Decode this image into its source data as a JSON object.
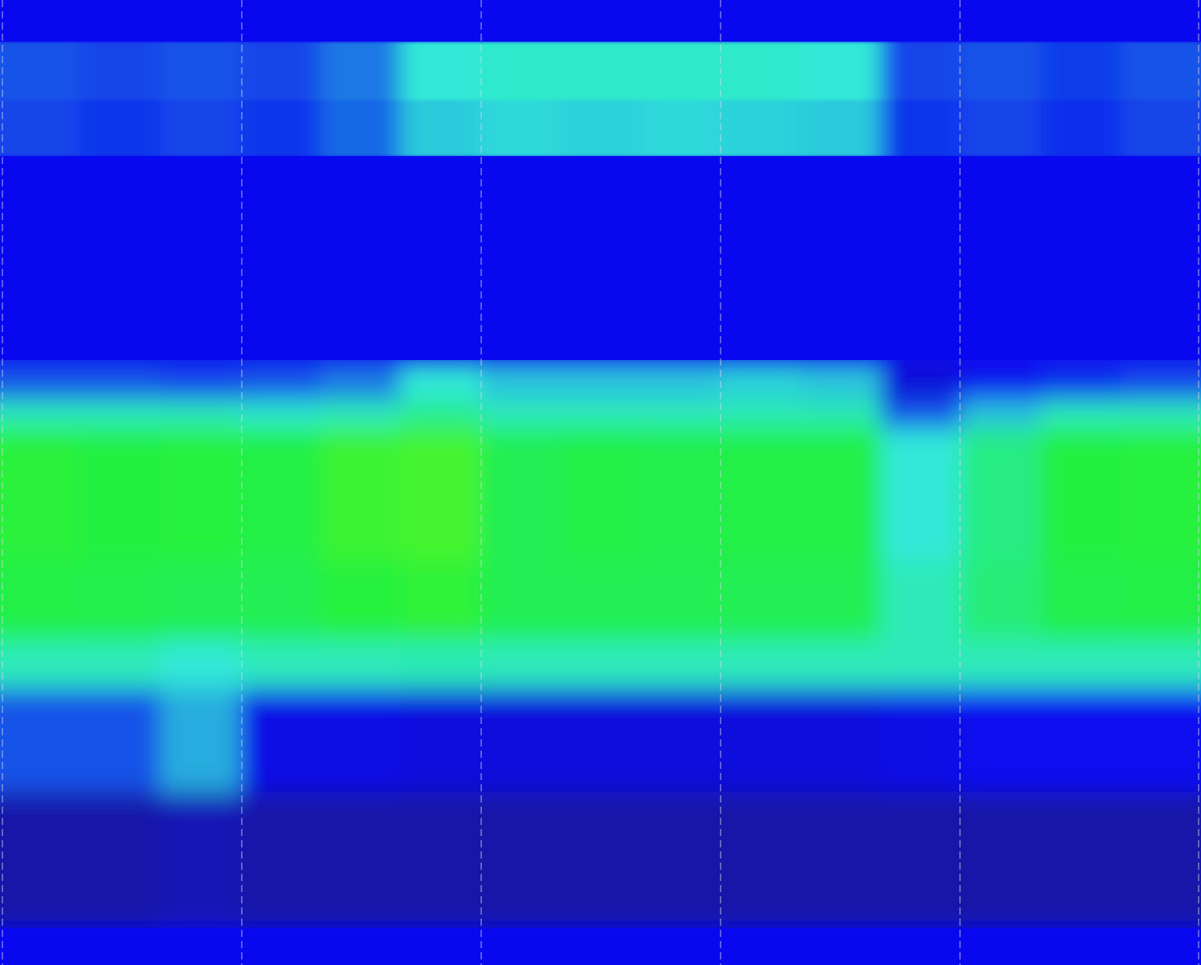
{
  "chart_data": {
    "type": "heatmap",
    "title": "",
    "xlabel": "",
    "ylabel": "",
    "grid": true,
    "grid_style": "dashed vertical",
    "colormap": [
      "#1a1a90",
      "#0808f0",
      "#30e8d8",
      "#20f040",
      "#a0ff00"
    ],
    "value_range": [
      0,
      1
    ],
    "columns": 15,
    "values": [
      [
        0.2,
        0.2,
        0.2,
        0.2,
        0.2,
        0.2,
        0.2,
        0.2,
        0.2,
        0.2,
        0.2,
        0.2,
        0.2,
        0.2,
        0.2
      ],
      [
        0.3,
        0.28,
        0.3,
        0.28,
        0.35,
        0.5,
        0.52,
        0.52,
        0.52,
        0.52,
        0.5,
        0.28,
        0.3,
        0.27,
        0.3
      ],
      [
        0.28,
        0.26,
        0.28,
        0.26,
        0.33,
        0.46,
        0.48,
        0.47,
        0.48,
        0.47,
        0.46,
        0.26,
        0.28,
        0.25,
        0.28
      ],
      [
        0.2,
        0.2,
        0.2,
        0.2,
        0.2,
        0.2,
        0.2,
        0.2,
        0.2,
        0.2,
        0.2,
        0.2,
        0.2,
        0.2,
        0.2
      ],
      [
        0.3,
        0.3,
        0.28,
        0.3,
        0.35,
        0.5,
        0.45,
        0.45,
        0.45,
        0.47,
        0.45,
        0.15,
        0.22,
        0.25,
        0.28
      ],
      [
        0.55,
        0.55,
        0.55,
        0.52,
        0.55,
        0.62,
        0.55,
        0.55,
        0.55,
        0.56,
        0.56,
        0.3,
        0.45,
        0.55,
        0.55
      ],
      [
        0.77,
        0.75,
        0.76,
        0.74,
        0.8,
        0.82,
        0.72,
        0.74,
        0.73,
        0.74,
        0.74,
        0.5,
        0.64,
        0.75,
        0.76
      ],
      [
        0.74,
        0.73,
        0.72,
        0.72,
        0.76,
        0.78,
        0.72,
        0.72,
        0.72,
        0.72,
        0.72,
        0.55,
        0.66,
        0.73,
        0.74
      ],
      [
        0.55,
        0.55,
        0.5,
        0.55,
        0.55,
        0.56,
        0.55,
        0.55,
        0.55,
        0.55,
        0.55,
        0.55,
        0.55,
        0.55,
        0.55
      ],
      [
        0.3,
        0.3,
        0.42,
        0.18,
        0.18,
        0.16,
        0.16,
        0.16,
        0.16,
        0.16,
        0.16,
        0.18,
        0.2,
        0.2,
        0.2
      ],
      [
        0.05,
        0.05,
        0.08,
        0.05,
        0.05,
        0.05,
        0.05,
        0.05,
        0.05,
        0.05,
        0.05,
        0.05,
        0.05,
        0.05,
        0.05
      ],
      [
        0.2,
        0.2,
        0.2,
        0.2,
        0.2,
        0.2,
        0.2,
        0.2,
        0.2,
        0.2,
        0.2,
        0.2,
        0.2,
        0.2,
        0.2
      ]
    ]
  }
}
